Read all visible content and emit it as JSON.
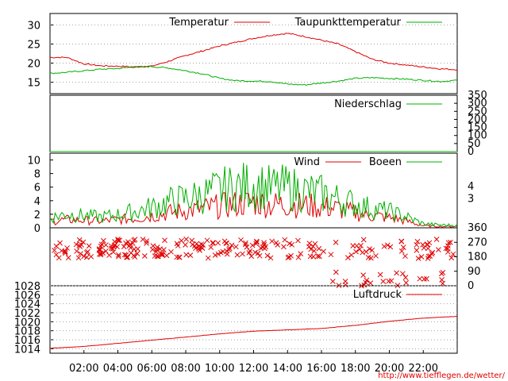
{
  "colors": {
    "red": "#e00000",
    "green": "#00b000",
    "olive": "#a08000",
    "frame": "#000000",
    "grid": "#a0a0a0"
  },
  "footer_url": "http://www.tiefflegen.de/wetter/",
  "x_axis": {
    "range_hours": [
      0,
      24
    ],
    "tick_labels": [
      "02:00",
      "04:00",
      "06:00",
      "08:00",
      "10:00",
      "12:00",
      "14:00",
      "16:00",
      "18:00",
      "20:00",
      "22:00"
    ],
    "tick_hours": [
      2,
      4,
      6,
      8,
      10,
      12,
      14,
      16,
      18,
      20,
      22
    ]
  },
  "chart_data": [
    {
      "type": "line",
      "panel": "temperature",
      "legend": [
        "Temperatur",
        "Taupunkttemperatur"
      ],
      "ylim": [
        12,
        33
      ],
      "y_ticks": [
        "15",
        "20",
        "25",
        "30"
      ],
      "y_tick_values": [
        15,
        20,
        25,
        30
      ],
      "series": [
        {
          "name": "Temperatur",
          "color": "#e00000",
          "x": [
            0,
            1,
            2,
            3,
            4,
            5,
            6,
            7,
            8,
            9,
            10,
            11,
            12,
            13,
            14,
            15,
            16,
            17,
            18,
            19,
            20,
            21,
            22,
            23,
            24
          ],
          "y": [
            21.5,
            21.5,
            19.8,
            19.3,
            19.2,
            19.0,
            19.2,
            20.5,
            22.0,
            23.2,
            24.5,
            25.5,
            26.5,
            27.3,
            27.8,
            27.0,
            26.0,
            25.0,
            23.0,
            21.0,
            20.0,
            19.5,
            19.0,
            18.5,
            18.3
          ]
        },
        {
          "name": "Taupunkttemperatur",
          "color": "#00b000",
          "x": [
            0,
            1,
            2,
            3,
            4,
            5,
            6,
            7,
            8,
            9,
            10,
            11,
            12,
            13,
            14,
            15,
            16,
            17,
            18,
            19,
            20,
            21,
            22,
            23,
            24
          ],
          "y": [
            17.3,
            17.6,
            18.0,
            18.4,
            18.6,
            19.0,
            19.1,
            18.7,
            18.0,
            17.2,
            16.0,
            15.4,
            15.3,
            15.2,
            14.5,
            14.3,
            14.8,
            15.3,
            16.0,
            16.2,
            16.0,
            15.8,
            15.5,
            15.2,
            15.5
          ]
        }
      ]
    },
    {
      "type": "line",
      "panel": "precipitation",
      "legend": [
        "Niederschlag"
      ],
      "ylim": [
        0,
        350
      ],
      "y_ticks": [
        "0",
        "50",
        "100",
        "150",
        "200",
        "250",
        "300",
        "350"
      ],
      "y_tick_values": [
        0,
        50,
        100,
        150,
        200,
        250,
        300,
        350
      ],
      "series": [
        {
          "name": "Niederschlag",
          "color": "#00b000",
          "x": [
            0,
            4,
            24
          ],
          "y": [
            0,
            0,
            0
          ]
        }
      ]
    },
    {
      "type": "line",
      "panel": "wind",
      "legend": [
        "Wind",
        "Boeen"
      ],
      "ylim": [
        0,
        11
      ],
      "y_ticks": [
        "0",
        "2",
        "4",
        "6",
        "8",
        "10"
      ],
      "y_tick_values": [
        0,
        2,
        4,
        6,
        8,
        10
      ],
      "right_ticks": [
        "3",
        "4"
      ],
      "right_tick_values": [
        4.4,
        6.2
      ],
      "series": [
        {
          "name": "Wind",
          "color": "#e00000",
          "x": [
            0,
            1,
            2,
            3,
            4,
            5,
            6,
            7,
            8,
            9,
            10,
            11,
            12,
            13,
            14,
            15,
            16,
            17,
            18,
            19,
            20,
            21,
            22,
            23,
            24
          ],
          "y": [
            1.0,
            1.2,
            1.1,
            1.0,
            1.2,
            1.4,
            1.8,
            2.2,
            2.5,
            2.8,
            3.2,
            3.5,
            3.8,
            3.4,
            3.5,
            3.3,
            3.1,
            2.8,
            2.2,
            1.8,
            1.5,
            1.0,
            0.3,
            0.2,
            0.2
          ]
        },
        {
          "name": "Boeen",
          "color": "#00b000",
          "x": [
            0,
            1,
            2,
            3,
            4,
            5,
            6,
            7,
            8,
            9,
            10,
            11,
            12,
            13,
            14,
            15,
            16,
            17,
            18,
            19,
            20,
            21,
            22,
            23,
            24
          ],
          "y": [
            1.5,
            2.0,
            1.8,
            1.6,
            1.9,
            2.4,
            3.0,
            3.8,
            4.3,
            4.8,
            5.6,
            6.0,
            6.4,
            5.8,
            5.9,
            5.4,
            5.0,
            4.2,
            3.5,
            2.8,
            2.4,
            1.6,
            0.6,
            0.4,
            0.4
          ]
        }
      ]
    },
    {
      "type": "scatter",
      "panel": "wind_direction",
      "ylim": [
        0,
        360
      ],
      "y_ticks": [
        "0",
        "90",
        "180",
        "270",
        "360"
      ],
      "y_tick_values": [
        0,
        90,
        180,
        270,
        360
      ],
      "series": [
        {
          "name": "",
          "color": "#e00000",
          "marker": "x"
        }
      ],
      "note": "points scattered mostly between 160 and 300 degrees"
    },
    {
      "type": "line",
      "panel": "pressure",
      "legend": [
        "Luftdruck"
      ],
      "ylim": [
        1013,
        1028
      ],
      "y_ticks": [
        "1014",
        "1016",
        "1018",
        "1020",
        "1022",
        "1024",
        "1026",
        "1028"
      ],
      "y_tick_values": [
        1014,
        1016,
        1018,
        1020,
        1022,
        1024,
        1026,
        1028
      ],
      "series": [
        {
          "name": "Luftdruck",
          "color": "#e00000",
          "x": [
            0,
            2,
            4,
            6,
            8,
            10,
            12,
            14,
            16,
            18,
            20,
            22,
            24
          ],
          "y": [
            1014.1,
            1014.5,
            1015.2,
            1015.9,
            1016.6,
            1017.3,
            1017.9,
            1018.2,
            1018.5,
            1019.2,
            1020.1,
            1020.8,
            1021.2
          ]
        }
      ]
    }
  ]
}
